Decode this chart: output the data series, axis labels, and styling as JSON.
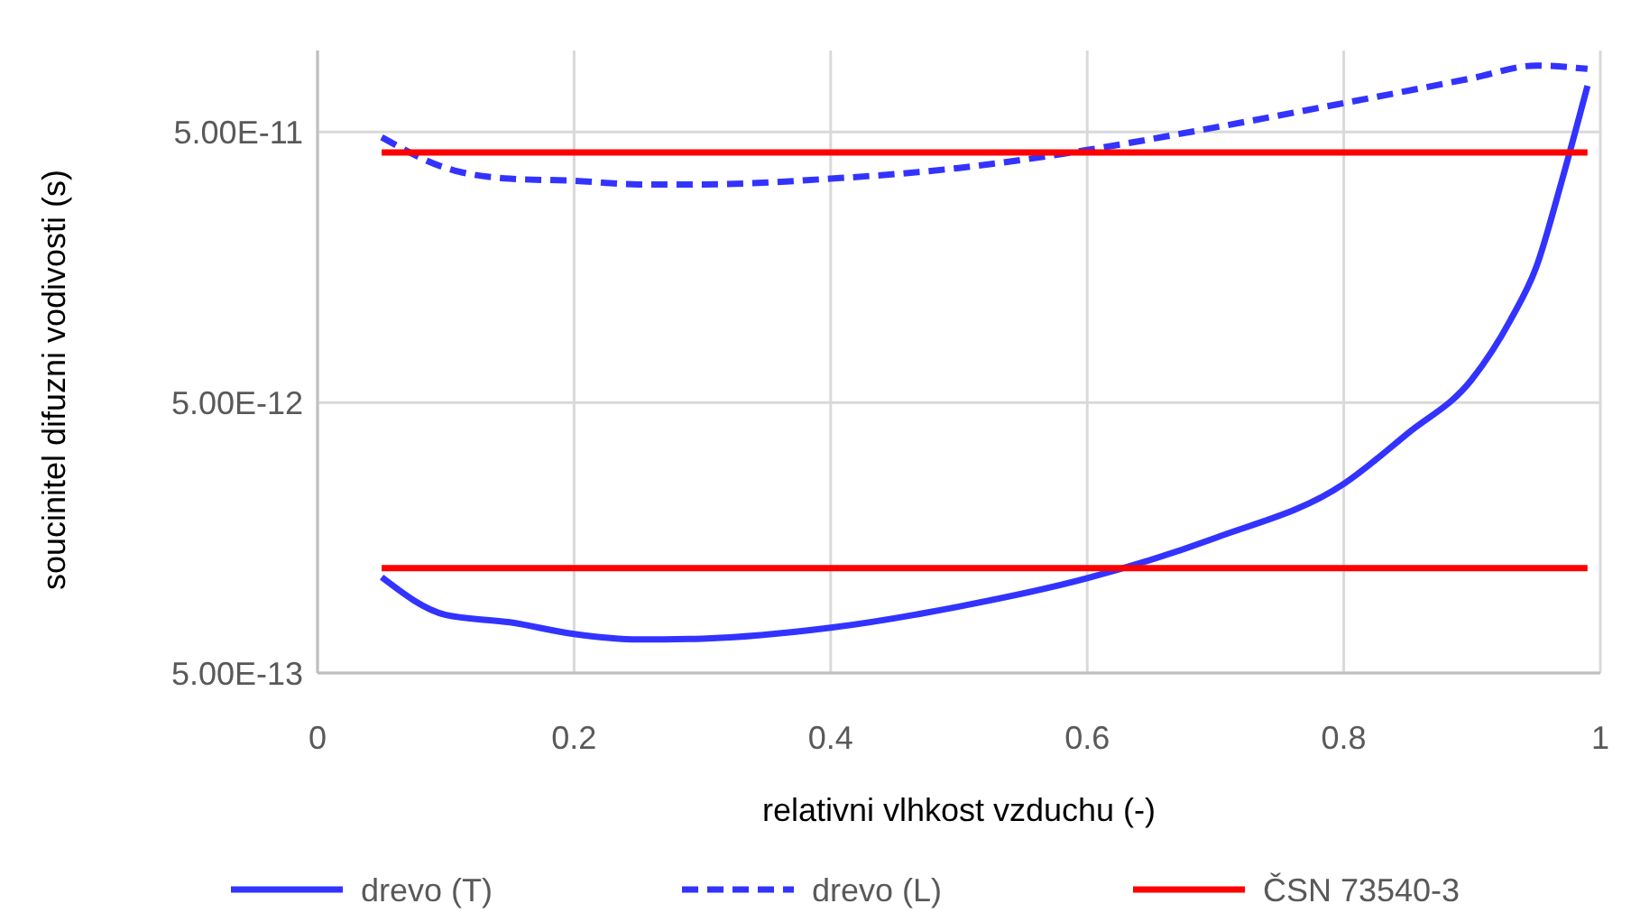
{
  "chart_data": {
    "type": "line",
    "xlabel": "relativni vlhkost vzduchu (-)",
    "ylabel": "soucinitel difuzni vodivosti (s)",
    "log": "y",
    "grid": true,
    "legend": "bottom",
    "xlim": [
      0,
      1
    ],
    "xticks": [
      0,
      0.2,
      0.4,
      0.6,
      0.8,
      1
    ],
    "ylim": [
      5e-13,
      1e-10
    ],
    "yticks": [
      {
        "value": 5e-13,
        "label": "5.00E-13"
      },
      {
        "value": 5e-12,
        "label": "5.00E-12"
      },
      {
        "value": 5e-11,
        "label": "5.00E-11"
      }
    ],
    "series": [
      {
        "name": "drevo (T)",
        "color": "#3333ff",
        "line_style": "solid",
        "x": [
          0.05,
          0.1,
          0.15,
          0.2,
          0.25,
          0.3,
          0.4,
          0.5,
          0.6,
          0.7,
          0.8,
          0.85,
          0.9,
          0.93,
          0.95,
          0.97,
          0.99
        ],
        "values": [
          1.13e-12,
          8.2e-13,
          7.7e-13,
          6.97e-13,
          6.65e-13,
          6.7e-13,
          7.35e-13,
          8.8e-13,
          1.12e-12,
          1.58e-12,
          2.5e-12,
          3.85e-12,
          6.1e-12,
          1.01e-11,
          1.58e-11,
          3.3e-11,
          7.4e-11
        ]
      },
      {
        "name": "drevo (L)",
        "color": "#3333ff",
        "line_style": "dashed",
        "x": [
          0.05,
          0.1,
          0.15,
          0.2,
          0.25,
          0.3,
          0.4,
          0.5,
          0.6,
          0.7,
          0.8,
          0.9,
          0.95,
          0.99
        ],
        "values": [
          4.78e-11,
          3.68e-11,
          3.36e-11,
          3.3e-11,
          3.2e-11,
          3.2e-11,
          3.36e-11,
          3.68e-11,
          4.29e-11,
          5.2e-11,
          6.39e-11,
          7.9e-11,
          8.8e-11,
          8.55e-11
        ]
      },
      {
        "name": "ČSN 73540-3",
        "color": "#ff0000",
        "line_style": "solid",
        "x": [
          0.05,
          0.99
        ],
        "values": [
          4.2e-11,
          4.2e-11
        ]
      },
      {
        "color": "#ff0000",
        "line_style": "solid",
        "x": [
          0.05,
          0.99
        ],
        "values": [
          1.22e-12,
          1.22e-12
        ]
      }
    ]
  }
}
